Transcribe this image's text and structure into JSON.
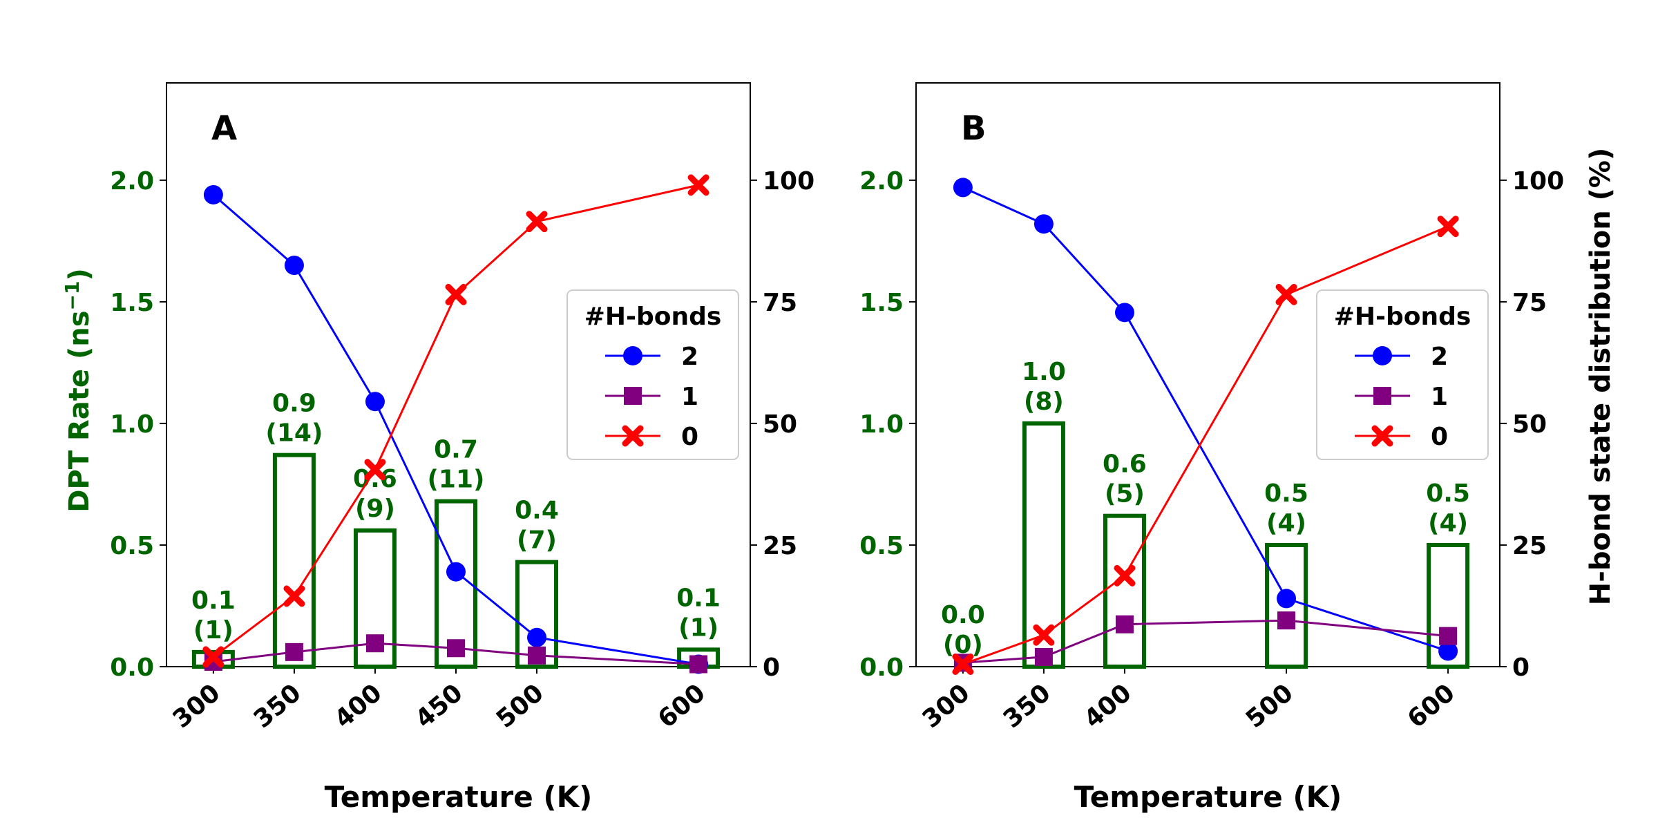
{
  "colors": {
    "bar": "#006400",
    "hb2": "#0000ff",
    "hb1": "#800080",
    "hb0": "#ff0000",
    "left_axis": "#006400",
    "right_axis": "#000000"
  },
  "shared": {
    "xlabel": "Temperature (K)",
    "left_ylabel": "DPT Rate (ns",
    "left_ylabel_sup": "−1",
    "left_ylabel_end": ")",
    "right_ylabel": "H-bond state distribution (%)",
    "left_ticks": [
      "0.0",
      "0.5",
      "1.0",
      "1.5",
      "2.0"
    ],
    "right_ticks": [
      "0",
      "25",
      "50",
      "75",
      "100"
    ],
    "legend_title": "#H-bonds",
    "legend_entries": [
      "2",
      "1",
      "0"
    ]
  },
  "chart_data": [
    {
      "type": "bar+line",
      "panel_label": "A",
      "title": "",
      "xlabel": "Temperature (K)",
      "ylabel_left": "DPT Rate (ns−1)",
      "ylabel_right": "",
      "x": [
        300,
        350,
        400,
        450,
        500,
        600
      ],
      "x_tick_labels": [
        "300",
        "350",
        "400",
        "450",
        "500",
        "600"
      ],
      "xlim": [
        271,
        632
      ],
      "ylim_left": [
        0,
        2.4
      ],
      "ylim_right": [
        0,
        120
      ],
      "bars": {
        "name": "DPT Rate",
        "values": [
          0.06,
          0.87,
          0.56,
          0.68,
          0.43,
          0.07
        ],
        "labels": [
          [
            "0.1",
            "(1)"
          ],
          [
            "0.9",
            "(14)"
          ],
          [
            "0.6",
            "(9)"
          ],
          [
            "0.7",
            "(11)"
          ],
          [
            "0.4",
            "(7)"
          ],
          [
            "0.1",
            "(1)"
          ]
        ]
      },
      "series": [
        {
          "name": "2",
          "marker": "circle",
          "values": [
            97,
            82.5,
            54.5,
            19.5,
            6,
            0.5
          ]
        },
        {
          "name": "1",
          "marker": "square",
          "values": [
            1,
            3,
            4.8,
            3.8,
            2.3,
            0.5
          ]
        },
        {
          "name": "0",
          "marker": "x",
          "values": [
            2,
            14.5,
            40.5,
            76.5,
            91.5,
            99
          ]
        }
      ],
      "legend_position": "center-right"
    },
    {
      "type": "bar+line",
      "panel_label": "B",
      "title": "",
      "xlabel": "Temperature (K)",
      "ylabel_left": "",
      "ylabel_right": "H-bond state distribution (%)",
      "x": [
        300,
        350,
        400,
        500,
        600
      ],
      "x_tick_labels": [
        "300",
        "350",
        "400",
        "500",
        "600"
      ],
      "xlim": [
        271,
        632
      ],
      "ylim_left": [
        0,
        2.4
      ],
      "ylim_right": [
        0,
        120
      ],
      "bars": {
        "name": "DPT Rate",
        "values": [
          0.0,
          1.0,
          0.62,
          0.5,
          0.5
        ],
        "labels": [
          [
            "0.0",
            "(0)"
          ],
          [
            "1.0",
            "(8)"
          ],
          [
            "0.6",
            "(5)"
          ],
          [
            "0.5",
            "(4)"
          ],
          [
            "0.5",
            "(4)"
          ]
        ]
      },
      "series": [
        {
          "name": "2",
          "marker": "circle",
          "values": [
            98.5,
            91,
            72.8,
            14,
            3.2
          ]
        },
        {
          "name": "1",
          "marker": "square",
          "values": [
            0.8,
            2,
            8.7,
            9.5,
            6.3
          ]
        },
        {
          "name": "0",
          "marker": "x",
          "values": [
            0.5,
            6.5,
            18.7,
            76.5,
            90.5
          ]
        }
      ],
      "legend_position": "center-right"
    }
  ]
}
